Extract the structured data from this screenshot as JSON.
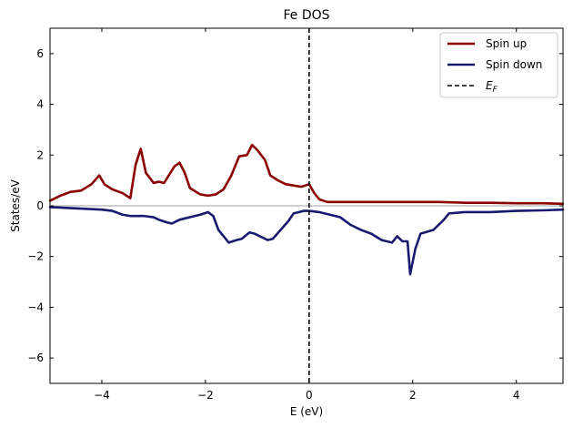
{
  "chart_data": {
    "type": "line",
    "title": "Fe DOS",
    "xlabel": "E (eV)",
    "ylabel": "States/eV",
    "xlim": [
      -5,
      4.9
    ],
    "ylim": [
      -7,
      7
    ],
    "xticks": [
      -4,
      -2,
      0,
      2,
      4
    ],
    "yticks": [
      -6,
      -4,
      -2,
      0,
      2,
      4,
      6
    ],
    "xtick_labels": [
      "−4",
      "−2",
      "0",
      "2",
      "4"
    ],
    "ytick_labels": [
      "−6",
      "−4",
      "−2",
      "0",
      "2",
      "4",
      "6"
    ],
    "legend_position": "top-right",
    "fermi_level": 0,
    "zero_line": true,
    "legend": [
      {
        "label": "Spin up",
        "color": "#8b0000",
        "style": "solid"
      },
      {
        "label": "Spin down",
        "color": "#191970",
        "style": "solid"
      },
      {
        "label": "E",
        "sub": "F",
        "color": "#000000",
        "style": "dashed"
      }
    ],
    "series": [
      {
        "name": "Spin up",
        "color": "#8b0000",
        "x": [
          -5.0,
          -4.8,
          -4.6,
          -4.4,
          -4.2,
          -4.05,
          -3.95,
          -3.8,
          -3.6,
          -3.45,
          -3.35,
          -3.25,
          -3.15,
          -3.0,
          -2.9,
          -2.8,
          -2.6,
          -2.5,
          -2.4,
          -2.3,
          -2.1,
          -1.95,
          -1.8,
          -1.65,
          -1.5,
          -1.35,
          -1.2,
          -1.1,
          -1.0,
          -0.85,
          -0.75,
          -0.6,
          -0.45,
          -0.3,
          -0.15,
          0.0,
          0.1,
          0.2,
          0.35,
          0.5,
          1.0,
          1.5,
          2.0,
          2.5,
          3.0,
          3.5,
          4.0,
          4.5,
          4.9
        ],
        "values": [
          0.2,
          0.4,
          0.55,
          0.6,
          0.85,
          1.2,
          0.85,
          0.65,
          0.5,
          0.3,
          1.6,
          2.25,
          1.3,
          0.9,
          0.95,
          0.9,
          1.55,
          1.7,
          1.3,
          0.7,
          0.45,
          0.4,
          0.45,
          0.65,
          1.2,
          1.95,
          2.0,
          2.4,
          2.2,
          1.8,
          1.2,
          1.0,
          0.85,
          0.8,
          0.75,
          0.85,
          0.5,
          0.25,
          0.15,
          0.15,
          0.15,
          0.15,
          0.15,
          0.15,
          0.12,
          0.12,
          0.1,
          0.1,
          0.08
        ]
      },
      {
        "name": "Spin down",
        "color": "#191970",
        "x": [
          -5.0,
          -4.5,
          -4.0,
          -3.8,
          -3.6,
          -3.45,
          -3.2,
          -3.0,
          -2.9,
          -2.75,
          -2.65,
          -2.5,
          -2.3,
          -2.1,
          -1.95,
          -1.85,
          -1.75,
          -1.55,
          -1.4,
          -1.3,
          -1.15,
          -1.05,
          -0.95,
          -0.8,
          -0.7,
          -0.55,
          -0.4,
          -0.3,
          -0.1,
          0.0,
          0.2,
          0.4,
          0.6,
          0.8,
          1.0,
          1.2,
          1.4,
          1.6,
          1.7,
          1.8,
          1.9,
          1.95,
          2.05,
          2.15,
          2.4,
          2.6,
          2.7,
          3.0,
          3.5,
          4.0,
          4.5,
          4.9
        ],
        "values": [
          -0.05,
          -0.1,
          -0.15,
          -0.2,
          -0.35,
          -0.4,
          -0.4,
          -0.45,
          -0.55,
          -0.65,
          -0.7,
          -0.55,
          -0.45,
          -0.35,
          -0.25,
          -0.4,
          -0.95,
          -1.45,
          -1.35,
          -1.3,
          -1.05,
          -1.1,
          -1.2,
          -1.35,
          -1.3,
          -0.95,
          -0.6,
          -0.3,
          -0.2,
          -0.2,
          -0.25,
          -0.35,
          -0.45,
          -0.75,
          -0.95,
          -1.1,
          -1.35,
          -1.45,
          -1.2,
          -1.4,
          -1.4,
          -2.7,
          -1.7,
          -1.1,
          -0.95,
          -0.55,
          -0.3,
          -0.25,
          -0.25,
          -0.2,
          -0.18,
          -0.15
        ]
      }
    ]
  }
}
